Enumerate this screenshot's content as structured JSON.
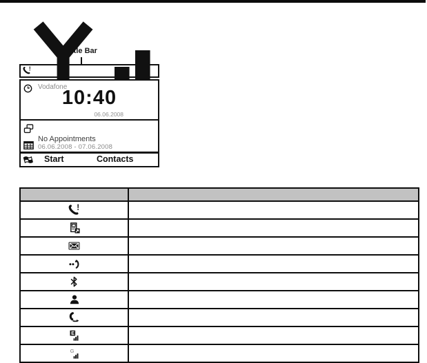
{
  "annotation": {
    "title_bar_label": "Title Bar"
  },
  "phone": {
    "title_bar": {
      "left_icon": "missed-call",
      "right_icon": "signal-strength"
    },
    "carrier": "Vodafone",
    "time": "10:40",
    "date": "06.06.2008",
    "appointments_status": "No Appointments",
    "appointments_range": "06.06.2008 - 07.06.2008",
    "softkeys": {
      "left": "Start",
      "right": "Contacts"
    },
    "decorative_icons": [
      "clock",
      "stacked-windows",
      "calendar",
      "windows-flag"
    ]
  },
  "table": {
    "header": [
      "",
      ""
    ],
    "rows": [
      {
        "icon": "missed-call",
        "description": ""
      },
      {
        "icon": "text-message",
        "description": ""
      },
      {
        "icon": "email",
        "description": ""
      },
      {
        "icon": "ringer",
        "description": ""
      },
      {
        "icon": "bluetooth",
        "description": ""
      },
      {
        "icon": "contact",
        "description": ""
      },
      {
        "icon": "call-forward",
        "description": ""
      },
      {
        "icon": "edge-signal",
        "description": ""
      },
      {
        "icon": "gprs-signal",
        "description": ""
      }
    ]
  },
  "colors": {
    "page_bg": "#ffffff",
    "border": "#111111",
    "table_header_bg": "#c2c2c2",
    "muted_text": "#8a8a8a",
    "text": "#1a1a1a"
  }
}
